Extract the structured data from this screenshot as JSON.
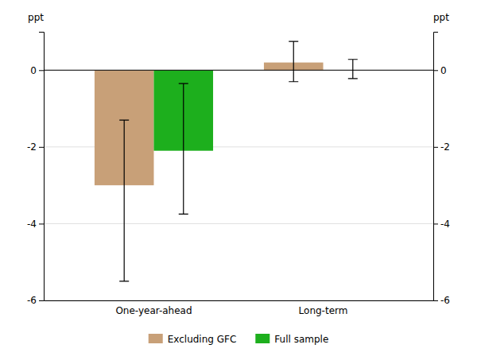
{
  "chart_data": {
    "type": "bar",
    "categories": [
      "One-year-ahead",
      "Long-term"
    ],
    "series": [
      {
        "name": "Excluding GFC",
        "color": "#C8A078",
        "values": [
          -3.0,
          0.2
        ],
        "ci_low": [
          -5.5,
          -0.3
        ],
        "ci_high": [
          -1.3,
          0.75
        ]
      },
      {
        "name": "Full sample",
        "color": "#1DAF1D",
        "values": [
          -2.1,
          0.0
        ],
        "ci_low": [
          -3.75,
          -0.22
        ],
        "ci_high": [
          -0.35,
          0.28
        ]
      }
    ],
    "ylabel": "ppt",
    "y2label": "ppt",
    "ylim": [
      -6,
      1
    ],
    "yticks": [
      -6,
      -4,
      -2,
      0
    ],
    "y2lim": [
      -6,
      1
    ],
    "y2ticks": [
      -6,
      -4,
      -2,
      0
    ],
    "grid": true,
    "legend": "bottom"
  }
}
